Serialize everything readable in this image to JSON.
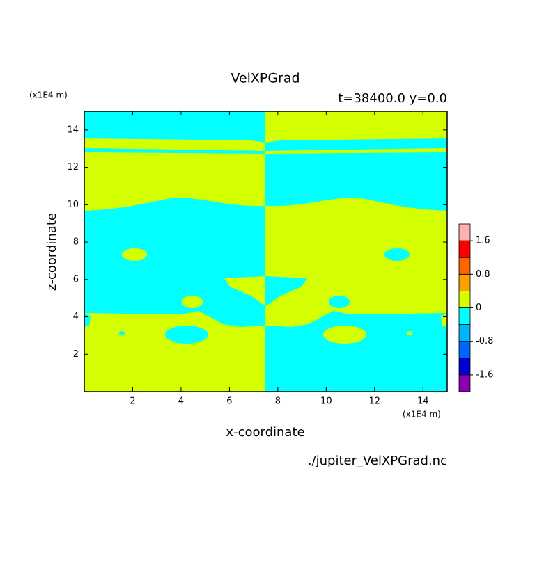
{
  "chart_data": {
    "type": "contour",
    "title": "VelXPGrad",
    "subtitle": "t=38400.0 y=0.0",
    "x_label": "x-coordinate",
    "y_label": "z-coordinate",
    "x_unit": "(x1E4 m)",
    "y_unit": "(x1E4 m)",
    "source": "./jupiter_VelXPGrad.nc",
    "xlim": [
      0,
      15
    ],
    "xticks": [
      2,
      4,
      6,
      8,
      10,
      12,
      14
    ],
    "ylim": [
      0,
      15
    ],
    "yticks": [
      2,
      4,
      6,
      8,
      10,
      12,
      14
    ],
    "colorbar": {
      "levels": [
        -1.6,
        -1.2,
        -0.8,
        -0.4,
        0,
        0.4,
        0.8,
        1.2,
        1.6
      ],
      "colors": [
        "#8a00b0",
        "#0000d2",
        "#0064ff",
        "#00b4ff",
        "#00ffff",
        "#d4ff00",
        "#ffa000",
        "#ff6400",
        "#ff0000",
        "#ffb0b0"
      ],
      "ticks": [
        1.6,
        0.8,
        0,
        -0.8,
        -1.6
      ]
    }
  }
}
